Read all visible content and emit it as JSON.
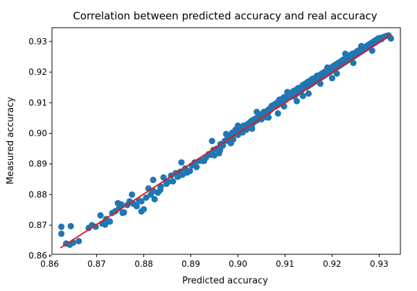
{
  "chart_data": {
    "type": "scatter",
    "title": "Correlation between predicted accuracy and real accuracy",
    "xlabel": "Predicted accuracy",
    "ylabel": "Measured accuracy",
    "xlim": [
      0.8605,
      0.9345
    ],
    "ylim": [
      0.8605,
      0.9345
    ],
    "grid": false,
    "legend": "none",
    "xticks": [
      0.86,
      0.87,
      0.88,
      0.89,
      0.9,
      0.91,
      0.92,
      0.93
    ],
    "yticks": [
      0.86,
      0.87,
      0.88,
      0.89,
      0.9,
      0.91,
      0.92,
      0.93
    ],
    "xtick_labels": [
      "0.86",
      "0.87",
      "0.88",
      "0.89",
      "0.90",
      "0.91",
      "0.92",
      "0.93"
    ],
    "ytick_labels": [
      "0.86",
      "0.87",
      "0.88",
      "0.89",
      "0.90",
      "0.91",
      "0.92",
      "0.93"
    ],
    "colors": {
      "points": "#1f77b4",
      "fit_line": "#e31a1c"
    },
    "fit_line": {
      "x": [
        0.8623,
        0.9325
      ],
      "y": [
        0.8626,
        0.9323
      ]
    },
    "series": [
      {
        "points": [
          [
            0.8625,
            0.8695
          ],
          [
            0.8625,
            0.8672
          ],
          [
            0.8645,
            0.8697
          ],
          [
            0.8635,
            0.864
          ],
          [
            0.8643,
            0.8636
          ],
          [
            0.865,
            0.8643
          ],
          [
            0.8662,
            0.8648
          ],
          [
            0.8683,
            0.8691
          ],
          [
            0.869,
            0.87
          ],
          [
            0.8698,
            0.8695
          ],
          [
            0.8708,
            0.8732
          ],
          [
            0.8712,
            0.8705
          ],
          [
            0.872,
            0.872
          ],
          [
            0.8728,
            0.8712
          ],
          [
            0.8733,
            0.874
          ],
          [
            0.874,
            0.8746
          ],
          [
            0.8748,
            0.8756
          ],
          [
            0.8752,
            0.8768
          ],
          [
            0.8758,
            0.8742
          ],
          [
            0.8765,
            0.8766
          ],
          [
            0.877,
            0.8778
          ],
          [
            0.8775,
            0.88
          ],
          [
            0.8778,
            0.877
          ],
          [
            0.8785,
            0.8762
          ],
          [
            0.879,
            0.878
          ],
          [
            0.8795,
            0.8745
          ],
          [
            0.88,
            0.8752
          ],
          [
            0.8805,
            0.879
          ],
          [
            0.881,
            0.882
          ],
          [
            0.8815,
            0.88
          ],
          [
            0.882,
            0.8812
          ],
          [
            0.8823,
            0.8785
          ],
          [
            0.883,
            0.8806
          ],
          [
            0.8836,
            0.8826
          ],
          [
            0.8842,
            0.8856
          ],
          [
            0.8848,
            0.8835
          ],
          [
            0.8852,
            0.8842
          ],
          [
            0.8858,
            0.8862
          ],
          [
            0.8862,
            0.8843
          ],
          [
            0.8868,
            0.887
          ],
          [
            0.8872,
            0.8858
          ],
          [
            0.8878,
            0.8875
          ],
          [
            0.8882,
            0.8865
          ],
          [
            0.8888,
            0.8885
          ],
          [
            0.8892,
            0.8872
          ],
          [
            0.8898,
            0.8877
          ],
          [
            0.8902,
            0.8895
          ],
          [
            0.8908,
            0.8905
          ],
          [
            0.8912,
            0.889
          ],
          [
            0.8918,
            0.891
          ],
          [
            0.8922,
            0.8912
          ],
          [
            0.8928,
            0.891
          ],
          [
            0.8932,
            0.892
          ],
          [
            0.8938,
            0.8932
          ],
          [
            0.8942,
            0.893
          ],
          [
            0.8948,
            0.8946
          ],
          [
            0.895,
            0.8928
          ],
          [
            0.8955,
            0.895
          ],
          [
            0.896,
            0.8935
          ],
          [
            0.8963,
            0.8965
          ],
          [
            0.8968,
            0.896
          ],
          [
            0.8972,
            0.8975
          ],
          [
            0.8975,
            0.8998
          ],
          [
            0.8978,
            0.8985
          ],
          [
            0.8982,
            0.8973
          ],
          [
            0.8985,
            0.8992
          ],
          [
            0.8988,
            0.9002
          ],
          [
            0.899,
            0.898
          ],
          [
            0.8993,
            0.8999
          ],
          [
            0.8995,
            0.9012
          ],
          [
            0.8998,
            0.9005
          ],
          [
            0.9,
            0.8995
          ],
          [
            0.9002,
            0.902
          ],
          [
            0.9005,
            0.901
          ],
          [
            0.9008,
            0.9015
          ],
          [
            0.901,
            0.9003
          ],
          [
            0.9012,
            0.9025
          ],
          [
            0.9015,
            0.902
          ],
          [
            0.9018,
            0.9012
          ],
          [
            0.902,
            0.903
          ],
          [
            0.9022,
            0.9023
          ],
          [
            0.9025,
            0.9035
          ],
          [
            0.9028,
            0.904
          ],
          [
            0.903,
            0.9028
          ],
          [
            0.9033,
            0.9045
          ],
          [
            0.9035,
            0.9038
          ],
          [
            0.9038,
            0.9048
          ],
          [
            0.904,
            0.9042
          ],
          [
            0.9043,
            0.9055
          ],
          [
            0.9045,
            0.905
          ],
          [
            0.9048,
            0.9062
          ],
          [
            0.905,
            0.9046
          ],
          [
            0.9053,
            0.906
          ],
          [
            0.9055,
            0.907
          ],
          [
            0.9058,
            0.9065
          ],
          [
            0.906,
            0.9053
          ],
          [
            0.9063,
            0.9075
          ],
          [
            0.9065,
            0.907
          ],
          [
            0.9068,
            0.9082
          ],
          [
            0.907,
            0.9078
          ],
          [
            0.9072,
            0.909
          ],
          [
            0.9075,
            0.9085
          ],
          [
            0.9078,
            0.9095
          ],
          [
            0.908,
            0.9088
          ],
          [
            0.9083,
            0.91
          ],
          [
            0.9085,
            0.9093
          ],
          [
            0.9088,
            0.911
          ],
          [
            0.909,
            0.91
          ],
          [
            0.9093,
            0.9112
          ],
          [
            0.9095,
            0.9105
          ],
          [
            0.9098,
            0.9118
          ],
          [
            0.91,
            0.9108
          ],
          [
            0.9103,
            0.9122
          ],
          [
            0.9105,
            0.9115
          ],
          [
            0.9108,
            0.9128
          ],
          [
            0.911,
            0.9118
          ],
          [
            0.9113,
            0.9132
          ],
          [
            0.9115,
            0.9125
          ],
          [
            0.9118,
            0.9138
          ],
          [
            0.912,
            0.912
          ],
          [
            0.9123,
            0.9142
          ],
          [
            0.9125,
            0.913
          ],
          [
            0.9128,
            0.9148
          ],
          [
            0.913,
            0.9135
          ],
          [
            0.9133,
            0.915
          ],
          [
            0.9135,
            0.914
          ],
          [
            0.9138,
            0.9158
          ],
          [
            0.914,
            0.9148
          ],
          [
            0.9143,
            0.9162
          ],
          [
            0.9145,
            0.915
          ],
          [
            0.9148,
            0.9168
          ],
          [
            0.915,
            0.9155
          ],
          [
            0.9153,
            0.9172
          ],
          [
            0.9155,
            0.916
          ],
          [
            0.9158,
            0.9178
          ],
          [
            0.916,
            0.9165
          ],
          [
            0.9163,
            0.918
          ],
          [
            0.9165,
            0.917
          ],
          [
            0.9168,
            0.9188
          ],
          [
            0.917,
            0.9175
          ],
          [
            0.9173,
            0.919
          ],
          [
            0.9175,
            0.918
          ],
          [
            0.9178,
            0.9195
          ],
          [
            0.918,
            0.9185
          ],
          [
            0.9183,
            0.92
          ],
          [
            0.9185,
            0.919
          ],
          [
            0.9188,
            0.9205
          ],
          [
            0.919,
            0.9195
          ],
          [
            0.9193,
            0.921
          ],
          [
            0.9195,
            0.92
          ],
          [
            0.9198,
            0.9215
          ],
          [
            0.92,
            0.9205
          ],
          [
            0.9203,
            0.922
          ],
          [
            0.9205,
            0.921
          ],
          [
            0.9208,
            0.9225
          ],
          [
            0.921,
            0.9215
          ],
          [
            0.9213,
            0.923
          ],
          [
            0.9215,
            0.922
          ],
          [
            0.9218,
            0.9235
          ],
          [
            0.922,
            0.9225
          ],
          [
            0.9223,
            0.924
          ],
          [
            0.9225,
            0.923
          ],
          [
            0.9228,
            0.9245
          ],
          [
            0.923,
            0.9235
          ],
          [
            0.9233,
            0.925
          ],
          [
            0.9235,
            0.924
          ],
          [
            0.9238,
            0.9255
          ],
          [
            0.924,
            0.9245
          ],
          [
            0.9243,
            0.926
          ],
          [
            0.9245,
            0.925
          ],
          [
            0.9248,
            0.9262
          ],
          [
            0.925,
            0.9255
          ],
          [
            0.9253,
            0.9268
          ],
          [
            0.9255,
            0.926
          ],
          [
            0.9258,
            0.9272
          ],
          [
            0.926,
            0.9265
          ],
          [
            0.9263,
            0.9275
          ],
          [
            0.9265,
            0.927
          ],
          [
            0.9268,
            0.928
          ],
          [
            0.927,
            0.9275
          ],
          [
            0.9273,
            0.9285
          ],
          [
            0.9275,
            0.928
          ],
          [
            0.9278,
            0.929
          ],
          [
            0.928,
            0.9285
          ],
          [
            0.9283,
            0.9295
          ],
          [
            0.9285,
            0.929
          ],
          [
            0.9288,
            0.93
          ],
          [
            0.929,
            0.9295
          ],
          [
            0.9293,
            0.9305
          ],
          [
            0.9295,
            0.93
          ],
          [
            0.9298,
            0.931
          ],
          [
            0.93,
            0.9305
          ],
          [
            0.9303,
            0.9312
          ],
          [
            0.9305,
            0.9308
          ],
          [
            0.931,
            0.9315
          ],
          [
            0.9315,
            0.9318
          ],
          [
            0.932,
            0.932
          ],
          [
            0.9325,
            0.931
          ],
          [
            0.9138,
            0.9122
          ],
          [
            0.9175,
            0.9162
          ],
          [
            0.921,
            0.9195
          ],
          [
            0.915,
            0.913
          ],
          [
            0.9098,
            0.9088
          ],
          [
            0.9065,
            0.9052
          ],
          [
            0.903,
            0.9015
          ],
          [
            0.8962,
            0.8945
          ],
          [
            0.8925,
            0.891
          ],
          [
            0.8875,
            0.8862
          ],
          [
            0.8835,
            0.8815
          ],
          [
            0.8795,
            0.8778
          ],
          [
            0.8755,
            0.874
          ],
          [
            0.8718,
            0.8702
          ],
          [
            0.919,
            0.9215
          ],
          [
            0.9228,
            0.926
          ],
          [
            0.9262,
            0.9285
          ],
          [
            0.9105,
            0.9135
          ],
          [
            0.9,
            0.9025
          ],
          [
            0.904,
            0.907
          ],
          [
            0.8945,
            0.8975
          ],
          [
            0.888,
            0.8905
          ],
          [
            0.882,
            0.8848
          ],
          [
            0.8745,
            0.8772
          ],
          [
            0.9125,
            0.9105
          ],
          [
            0.9085,
            0.9065
          ],
          [
            0.8985,
            0.8968
          ],
          [
            0.9245,
            0.923
          ],
          [
            0.9285,
            0.927
          ],
          [
            0.92,
            0.918
          ]
        ]
      }
    ]
  }
}
